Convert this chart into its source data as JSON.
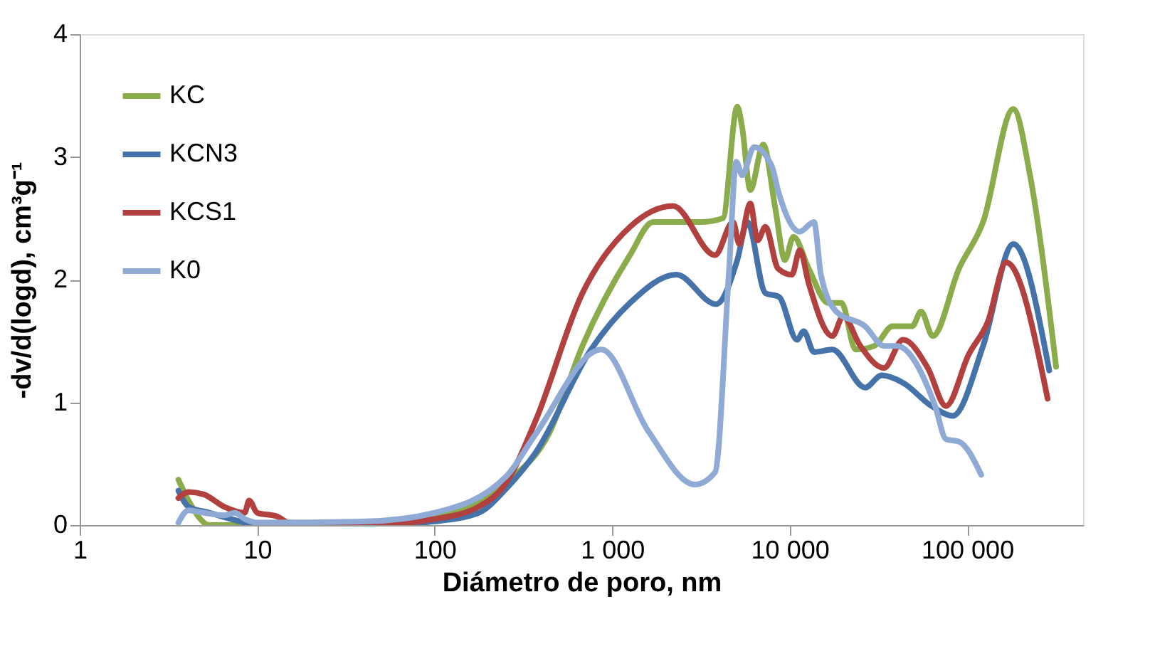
{
  "chart_data": {
    "type": "line",
    "xlabel": "Diámetro de poro, nm",
    "ylabel": "-dv/d(logd), cm³g⁻¹",
    "log": "x",
    "xlim": [
      1,
      450000
    ],
    "ylim": [
      0,
      4
    ],
    "xticks": [
      1,
      10,
      100,
      {
        "value": 1000,
        "label": "1 000"
      },
      {
        "value": 10000,
        "label": "10 000"
      },
      {
        "value": 100000,
        "label": "100 000"
      }
    ],
    "yticks": [
      0,
      1,
      2,
      3,
      4
    ],
    "grid": false,
    "legend": "top left",
    "marker": "none",
    "line_style": "solid",
    "series": [
      {
        "name": "KC",
        "color": "#8aac4b",
        "x": [
          3.6,
          4.1,
          5.4,
          10,
          41,
          100,
          254,
          442,
          680,
          1260,
          1700,
          3200,
          4200,
          5070,
          5400,
          6000,
          7100,
          8300,
          9400,
          10500,
          12800,
          16500,
          19600,
          23500,
          30000,
          38000,
          49000,
          55000,
          64000,
          90000,
          123000,
          182000,
          226000,
          317000
        ],
        "values": [
          0.37,
          0.2,
          0.0,
          0.0,
          0.02,
          0.08,
          0.35,
          0.75,
          1.46,
          2.2,
          2.47,
          2.47,
          2.5,
          3.41,
          3.24,
          2.73,
          3.1,
          2.58,
          2.16,
          2.35,
          2.09,
          1.81,
          1.81,
          1.43,
          1.46,
          1.62,
          1.62,
          1.74,
          1.54,
          2.09,
          2.47,
          3.39,
          2.85,
          1.29
        ]
      },
      {
        "name": "KCN3",
        "color": "#4672aa",
        "x": [
          3.6,
          4.1,
          5.4,
          8,
          10,
          41,
          100,
          177,
          254,
          370,
          760,
          1260,
          2300,
          3850,
          5070,
          5770,
          7300,
          8700,
          11000,
          12000,
          13700,
          17400,
          26600,
          33000,
          43500,
          63000,
          83000,
          123000,
          182000,
          290000
        ],
        "values": [
          0.28,
          0.15,
          0.1,
          0.03,
          0.0,
          0.0,
          0.03,
          0.1,
          0.3,
          0.59,
          1.43,
          1.81,
          2.04,
          1.8,
          2.16,
          2.47,
          1.89,
          1.86,
          1.51,
          1.58,
          1.41,
          1.43,
          1.12,
          1.22,
          1.16,
          0.97,
          0.89,
          1.46,
          2.29,
          1.26
        ]
      },
      {
        "name": "KCS1",
        "color": "#b2403f",
        "x": [
          3.6,
          4.1,
          5,
          6.5,
          8.5,
          9,
          10,
          13,
          15,
          41,
          100,
          177,
          254,
          370,
          680,
          1260,
          2200,
          3800,
          4800,
          5200,
          6000,
          6600,
          7300,
          8600,
          10300,
          11400,
          12800,
          17400,
          20000,
          25000,
          34000,
          43500,
          60000,
          76000,
          102000,
          131000,
          166000,
          284000
        ],
        "values": [
          0.22,
          0.27,
          0.25,
          0.15,
          0.1,
          0.2,
          0.1,
          0.07,
          0.02,
          0.0,
          0.05,
          0.15,
          0.35,
          0.85,
          1.89,
          2.43,
          2.6,
          2.2,
          2.47,
          2.29,
          2.62,
          2.32,
          2.43,
          2.09,
          2.04,
          2.24,
          1.97,
          1.54,
          1.7,
          1.46,
          1.28,
          1.51,
          1.28,
          0.97,
          1.39,
          1.66,
          2.14,
          1.03
        ]
      },
      {
        "name": "K0",
        "color": "#8fabd5",
        "x": [
          3.6,
          4.1,
          5,
          6.5,
          7.5,
          8.5,
          10,
          41,
          100,
          254,
          370,
          870,
          1590,
          2930,
          3800,
          4560,
          5000,
          5400,
          6300,
          7900,
          8700,
          11400,
          13700,
          15000,
          18300,
          26600,
          34000,
          40000,
          66000,
          76000,
          90000,
          120000
        ],
        "values": [
          0.02,
          0.12,
          0.1,
          0.08,
          0.1,
          0.05,
          0.02,
          0.03,
          0.1,
          0.4,
          0.74,
          1.43,
          0.77,
          0.33,
          0.43,
          2.09,
          2.96,
          2.85,
          3.08,
          2.93,
          2.7,
          2.39,
          2.47,
          2.04,
          1.74,
          1.62,
          1.46,
          1.46,
          0.97,
          0.7,
          0.68,
          0.41
        ]
      }
    ]
  }
}
